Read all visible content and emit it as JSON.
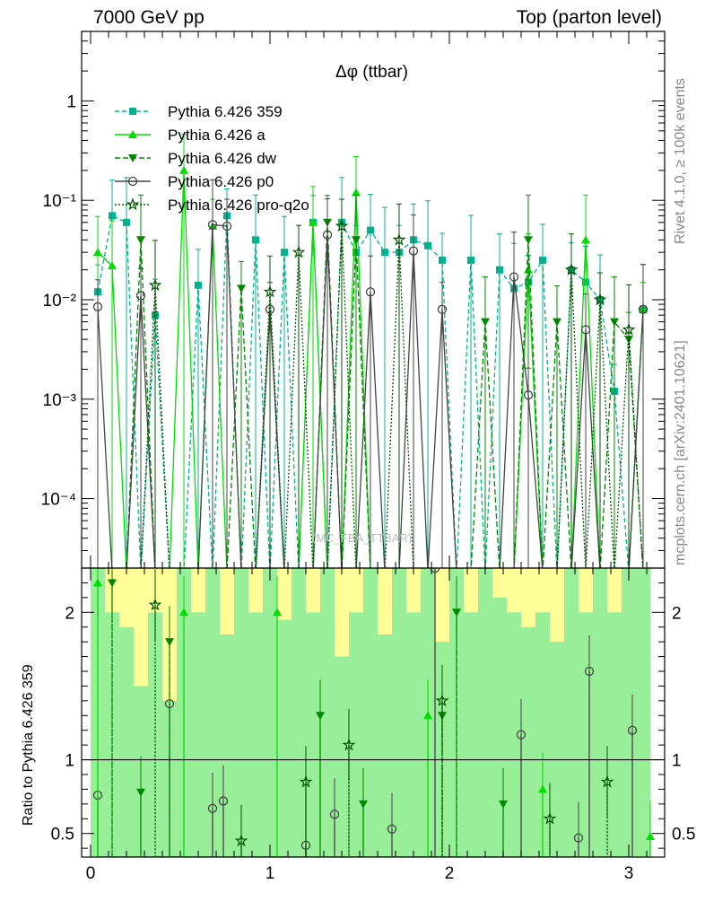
{
  "header": {
    "left": "7000 GeV pp",
    "right": "Top (parton level)"
  },
  "side_labels": {
    "rivet": "Rivet 4.1.0, ≥ 100k events",
    "mcplots": "mcplots.cern.ch [arXiv:2401.10621]"
  },
  "chart_data": {
    "type": "line",
    "title": "Δφ (ttbar)",
    "watermark": "(MC_FBA_TTBAR)",
    "xlabel": "",
    "ylabel_top": "",
    "ylabel_ratio": "Ratio to Pythia 6.426 359",
    "xlim": [
      -0.05,
      3.2
    ],
    "ylim_top": [
      2e-05,
      5
    ],
    "ylog_top": true,
    "ylim_ratio": [
      0.34,
      2.3
    ],
    "x_ticks": [
      "0",
      "1",
      "2",
      "3"
    ],
    "y_ticks_top": [
      "10⁻⁴",
      "10⁻³",
      "10⁻²",
      "10⁻¹",
      "1"
    ],
    "y_ticks_ratio": [
      "0.5",
      "1",
      "2"
    ],
    "x": [
      0.04,
      0.12,
      0.2,
      0.28,
      0.36,
      0.44,
      0.52,
      0.6,
      0.68,
      0.76,
      0.84,
      0.92,
      1.0,
      1.08,
      1.16,
      1.24,
      1.32,
      1.4,
      1.48,
      1.56,
      1.64,
      1.72,
      1.8,
      1.88,
      1.96,
      2.04,
      2.12,
      2.2,
      2.28,
      2.36,
      2.44,
      2.52,
      2.6,
      2.68,
      2.76,
      2.84,
      2.92,
      3.0,
      3.08
    ],
    "series": [
      {
        "name": "Pythia 6.426 359",
        "color": "#00b38f",
        "marker": "square",
        "dash": "5,3",
        "values": [
          0.012,
          0.07,
          0.06,
          0.0,
          0.007,
          0.0,
          0.0,
          0.014,
          0.0,
          0.07,
          0.0,
          0.04,
          0.0,
          0.03,
          0.0,
          0.06,
          0.0,
          0.06,
          0.03,
          0.05,
          0.03,
          0.03,
          0.04,
          0.035,
          0.025,
          0.0,
          0.025,
          0.0,
          0.02,
          0.013,
          0.015,
          0.025,
          0.0,
          0.02,
          0.015,
          0.01,
          0.0012,
          0.0,
          0.008
        ]
      },
      {
        "name": "Pythia 6.426 a",
        "color": "#00dd00",
        "marker": "triangle-up",
        "dash": "",
        "values": [
          0.03,
          0.022,
          0.0,
          0.0,
          0.0,
          0.0,
          0.2,
          0.0,
          0.055,
          0.0,
          0.0,
          0.0,
          0.0,
          0.0,
          0.0,
          0.06,
          0.0,
          0.0,
          0.12,
          0.0,
          0.0,
          0.0,
          0.0,
          0.0,
          0.0,
          0.0,
          0.0,
          0.0,
          0.0,
          0.0,
          0.02,
          0.0,
          0.0,
          0.0,
          0.04,
          0.0,
          0.0,
          0.0,
          0.008
        ]
      },
      {
        "name": "Pythia 6.426 dw",
        "color": "#008800",
        "marker": "triangle-down",
        "dash": "6,3",
        "values": [
          0.0,
          0.0,
          0.0,
          0.04,
          0.0,
          0.0,
          0.0,
          0.0,
          0.0,
          0.0,
          0.013,
          0.0,
          0.0,
          0.0,
          0.0,
          0.0,
          0.06,
          0.0,
          0.04,
          0.0,
          0.0,
          0.0,
          0.0,
          0.0,
          0.0,
          0.0,
          0.0,
          0.006,
          0.0,
          0.0,
          0.04,
          0.0,
          0.006,
          0.0,
          0.0,
          0.0,
          0.006,
          0.004,
          0.0
        ]
      },
      {
        "name": "Pythia 6.426 p0",
        "color": "#444444",
        "marker": "circle-open",
        "dash": "",
        "values": [
          0.0085,
          0.0,
          0.0,
          0.011,
          0.0,
          0.0,
          0.0,
          0.0,
          0.057,
          0.055,
          0.0,
          0.0,
          0.008,
          0.0,
          0.0,
          0.0,
          0.045,
          0.0,
          0.0,
          0.012,
          0.0,
          0.0,
          0.031,
          0.0,
          0.008,
          0.0,
          0.0,
          0.0,
          0.0,
          0.017,
          0.0011,
          0.0,
          0.0,
          0.0,
          0.005,
          0.0,
          0.0,
          0.0,
          0.008
        ]
      },
      {
        "name": "Pythia 6.426 pro-q2o",
        "color": "#005500",
        "marker": "star-open",
        "dash": "2,2",
        "values": [
          0.0,
          0.0,
          0.0,
          0.0,
          0.014,
          0.0,
          0.0,
          0.0,
          0.0,
          0.0,
          0.0,
          0.0,
          0.012,
          0.0,
          0.03,
          0.0,
          0.0,
          0.055,
          0.0,
          0.0,
          0.0,
          0.04,
          0.0,
          0.0,
          0.0,
          0.0,
          0.0,
          0.0,
          0.0,
          0.0,
          0.0,
          0.0,
          0.0,
          0.02,
          0.0,
          0.01,
          0.0,
          0.005,
          0.0
        ]
      }
    ],
    "ratio_reference": "Pythia 6.426 359",
    "ratio_series": [
      {
        "name": "Pythia 6.426 p0",
        "x": [
          0.04,
          0.44,
          0.68,
          0.74,
          1.2,
          1.36,
          1.68,
          1.92,
          2.4,
          2.72,
          2.78,
          3.02
        ],
        "values": [
          0.76,
          1.38,
          0.67,
          0.72,
          0.42,
          0.63,
          0.53,
          2.3,
          1.17,
          0.47,
          1.6,
          1.2
        ]
      },
      {
        "name": "Pythia 6.426 dw",
        "x": [
          0.12,
          0.28,
          0.44,
          1.28,
          1.52,
          1.96,
          2.04,
          2.3
        ],
        "values": [
          2.2,
          0.78,
          1.8,
          1.3,
          0.7,
          1.3,
          2.0,
          0.7
        ]
      },
      {
        "name": "Pythia 6.426 pro-q2o",
        "x": [
          0.36,
          0.84,
          1.2,
          1.44,
          1.96,
          2.56,
          2.88
        ],
        "values": [
          2.05,
          0.45,
          0.85,
          1.1,
          1.4,
          0.6,
          0.85
        ]
      },
      {
        "name": "Pythia 6.426 a",
        "x": [
          0.04,
          0.52,
          1.04,
          1.88,
          2.52,
          3.12
        ],
        "values": [
          2.2,
          2.0,
          2.0,
          1.3,
          0.8,
          0.48
        ]
      }
    ],
    "uncertainty_bands": {
      "green_color": "#99ee99",
      "yellow_color": "#ffff99",
      "green_upper": [
        2.3,
        2.0,
        1.9,
        1.5,
        2.0,
        1.4,
        2.3,
        2.0,
        2.3,
        1.85,
        2.3,
        2.0,
        2.3,
        1.95,
        2.3,
        2.0,
        2.3,
        1.7,
        2.0,
        2.3,
        1.85,
        2.3,
        2.0,
        2.3,
        1.8,
        2.3,
        2.0,
        2.3,
        2.1,
        2.0,
        1.9,
        2.0,
        1.8,
        2.3,
        2.0,
        2.3,
        2.0,
        2.3,
        2.3
      ],
      "yellow_upper": [
        2.3,
        2.3,
        2.3,
        2.3,
        2.3,
        2.3,
        2.3,
        2.3,
        2.22,
        2.3,
        2.3,
        2.3,
        2.3,
        2.3,
        2.3,
        2.3,
        2.3,
        2.3,
        2.3,
        2.3,
        2.3,
        2.3,
        2.3,
        2.3,
        2.3,
        2.3,
        2.3,
        2.3,
        2.3,
        2.3,
        2.3,
        2.3,
        2.3,
        2.3,
        2.3,
        2.3,
        2.3,
        2.3,
        2.3
      ]
    }
  }
}
